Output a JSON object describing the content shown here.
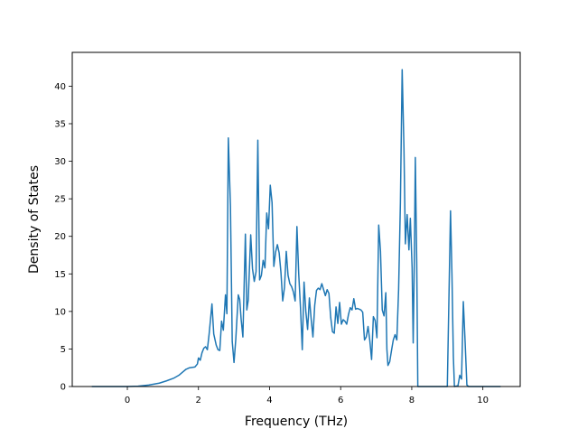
{
  "chart_data": {
    "type": "line",
    "title": "",
    "xlabel": "Frequency (THz)",
    "ylabel": "Density of States",
    "xlim": [
      -1.55,
      11.05
    ],
    "ylim": [
      0,
      44.5
    ],
    "xticks": [
      0,
      2,
      4,
      6,
      8,
      10
    ],
    "yticks": [
      0,
      5,
      10,
      15,
      20,
      25,
      30,
      35,
      40
    ],
    "grid": false,
    "legend": "none",
    "series": [
      {
        "color": "#1f77b4",
        "points": [
          [
            -1.0,
            0
          ],
          [
            -0.5,
            0
          ],
          [
            0.0,
            0.0
          ],
          [
            0.3,
            0.05
          ],
          [
            0.6,
            0.2
          ],
          [
            0.9,
            0.45
          ],
          [
            1.1,
            0.75
          ],
          [
            1.3,
            1.1
          ],
          [
            1.45,
            1.5
          ],
          [
            1.55,
            1.9
          ],
          [
            1.65,
            2.3
          ],
          [
            1.75,
            2.5
          ],
          [
            1.9,
            2.6
          ],
          [
            1.97,
            3.0
          ],
          [
            2.0,
            3.8
          ],
          [
            2.05,
            3.5
          ],
          [
            2.1,
            4.5
          ],
          [
            2.15,
            5.1
          ],
          [
            2.2,
            5.3
          ],
          [
            2.25,
            4.9
          ],
          [
            2.3,
            7.0
          ],
          [
            2.38,
            11.0
          ],
          [
            2.43,
            7.0
          ],
          [
            2.5,
            5.5
          ],
          [
            2.55,
            4.9
          ],
          [
            2.6,
            4.8
          ],
          [
            2.65,
            8.7
          ],
          [
            2.7,
            7.5
          ],
          [
            2.76,
            12.2
          ],
          [
            2.8,
            9.7
          ],
          [
            2.84,
            33.1
          ],
          [
            2.9,
            24.0
          ],
          [
            2.95,
            6.0
          ],
          [
            3.0,
            3.2
          ],
          [
            3.05,
            6.3
          ],
          [
            3.12,
            12.2
          ],
          [
            3.16,
            11.6
          ],
          [
            3.2,
            9.0
          ],
          [
            3.25,
            6.6
          ],
          [
            3.32,
            20.3
          ],
          [
            3.36,
            10.2
          ],
          [
            3.4,
            11.5
          ],
          [
            3.47,
            20.2
          ],
          [
            3.52,
            15.7
          ],
          [
            3.57,
            14.0
          ],
          [
            3.62,
            15.3
          ],
          [
            3.67,
            32.8
          ],
          [
            3.72,
            14.2
          ],
          [
            3.77,
            14.8
          ],
          [
            3.82,
            16.8
          ],
          [
            3.87,
            15.8
          ],
          [
            3.92,
            23.1
          ],
          [
            3.97,
            21.0
          ],
          [
            4.02,
            26.8
          ],
          [
            4.07,
            24.5
          ],
          [
            4.12,
            16.0
          ],
          [
            4.17,
            17.9
          ],
          [
            4.22,
            18.9
          ],
          [
            4.27,
            17.8
          ],
          [
            4.32,
            15.2
          ],
          [
            4.37,
            11.4
          ],
          [
            4.42,
            13.2
          ],
          [
            4.47,
            18.0
          ],
          [
            4.52,
            14.8
          ],
          [
            4.57,
            13.7
          ],
          [
            4.62,
            13.3
          ],
          [
            4.67,
            12.6
          ],
          [
            4.72,
            11.4
          ],
          [
            4.77,
            21.3
          ],
          [
            4.82,
            15.0
          ],
          [
            4.87,
            10.5
          ],
          [
            4.92,
            4.9
          ],
          [
            4.97,
            13.9
          ],
          [
            5.02,
            10.0
          ],
          [
            5.07,
            7.6
          ],
          [
            5.12,
            11.8
          ],
          [
            5.17,
            9.0
          ],
          [
            5.22,
            6.6
          ],
          [
            5.27,
            10.8
          ],
          [
            5.32,
            12.8
          ],
          [
            5.37,
            13.1
          ],
          [
            5.42,
            12.9
          ],
          [
            5.47,
            13.7
          ],
          [
            5.52,
            12.9
          ],
          [
            5.57,
            12.1
          ],
          [
            5.62,
            12.9
          ],
          [
            5.67,
            12.4
          ],
          [
            5.72,
            9.2
          ],
          [
            5.77,
            7.3
          ],
          [
            5.82,
            7.1
          ],
          [
            5.87,
            10.6
          ],
          [
            5.92,
            8.4
          ],
          [
            5.97,
            11.2
          ],
          [
            6.02,
            8.3
          ],
          [
            6.07,
            8.9
          ],
          [
            6.12,
            8.7
          ],
          [
            6.17,
            8.3
          ],
          [
            6.22,
            9.6
          ],
          [
            6.27,
            10.5
          ],
          [
            6.32,
            10.2
          ],
          [
            6.37,
            11.7
          ],
          [
            6.42,
            10.3
          ],
          [
            6.47,
            10.4
          ],
          [
            6.52,
            10.3
          ],
          [
            6.57,
            10.2
          ],
          [
            6.62,
            9.9
          ],
          [
            6.67,
            6.2
          ],
          [
            6.72,
            6.6
          ],
          [
            6.77,
            8.0
          ],
          [
            6.82,
            6.1
          ],
          [
            6.87,
            3.6
          ],
          [
            6.92,
            9.3
          ],
          [
            6.97,
            8.8
          ],
          [
            7.02,
            6.5
          ],
          [
            7.07,
            21.5
          ],
          [
            7.12,
            18.0
          ],
          [
            7.17,
            10.2
          ],
          [
            7.22,
            9.4
          ],
          [
            7.27,
            12.5
          ],
          [
            7.3,
            5.0
          ],
          [
            7.33,
            2.8
          ],
          [
            7.38,
            3.3
          ],
          [
            7.43,
            4.8
          ],
          [
            7.48,
            6.2
          ],
          [
            7.53,
            6.9
          ],
          [
            7.58,
            6.2
          ],
          [
            7.63,
            12.9
          ],
          [
            7.68,
            24.4
          ],
          [
            7.73,
            42.2
          ],
          [
            7.78,
            31.8
          ],
          [
            7.82,
            19.0
          ],
          [
            7.87,
            22.9
          ],
          [
            7.92,
            18.2
          ],
          [
            7.96,
            22.4
          ],
          [
            8.01,
            15.8
          ],
          [
            8.04,
            5.8
          ],
          [
            8.07,
            16.0
          ],
          [
            8.1,
            30.5
          ],
          [
            8.14,
            16.5
          ],
          [
            8.17,
            0.0
          ],
          [
            8.2,
            0
          ],
          [
            8.6,
            0
          ],
          [
            9.0,
            0
          ],
          [
            9.05,
            13.0
          ],
          [
            9.09,
            23.4
          ],
          [
            9.13,
            15.0
          ],
          [
            9.17,
            4.0
          ],
          [
            9.2,
            0
          ],
          [
            9.3,
            0.1
          ],
          [
            9.35,
            1.5
          ],
          [
            9.4,
            1.0
          ],
          [
            9.45,
            11.3
          ],
          [
            9.5,
            6.0
          ],
          [
            9.55,
            0.2
          ],
          [
            9.6,
            0
          ],
          [
            10.0,
            0
          ],
          [
            10.3,
            0
          ],
          [
            10.5,
            0
          ]
        ]
      }
    ]
  }
}
